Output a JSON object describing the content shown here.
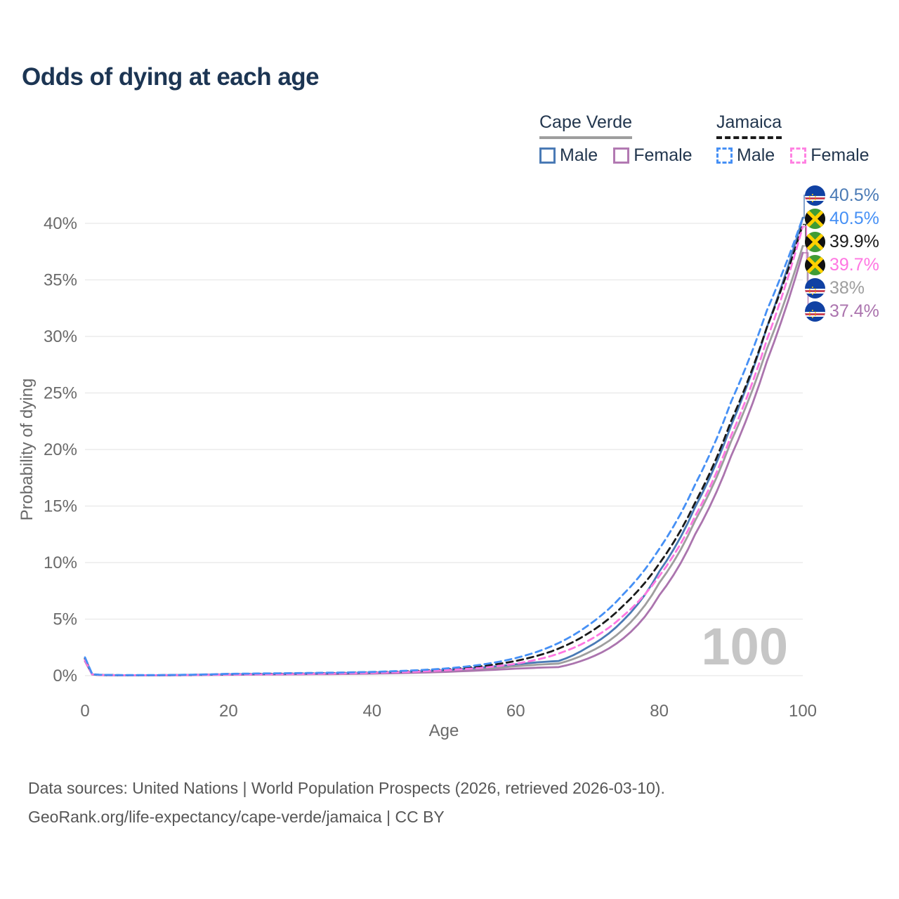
{
  "title": "Odds of dying at each age",
  "legend": {
    "groups": [
      {
        "name": "cape-verde",
        "label": "Cape Verde",
        "line_style": "solid",
        "underline_color": "#9e9e9e",
        "items": [
          {
            "label": "Male",
            "color": "#4a7ab5"
          },
          {
            "label": "Female",
            "color": "#b279b2"
          }
        ]
      },
      {
        "name": "jamaica",
        "label": "Jamaica",
        "line_style": "dashed",
        "underline_color": "#1a1a1a",
        "items": [
          {
            "label": "Male",
            "color": "#4690f5"
          },
          {
            "label": "Female",
            "color": "#ff82e2"
          }
        ]
      }
    ]
  },
  "end_labels": [
    {
      "flag": "cape-verde-flag-icon",
      "series": "Cape Verde Male",
      "value": "40.5%",
      "color": "#4a7ab5",
      "end_pct": 40.5
    },
    {
      "flag": "jamaica-flag-icon",
      "series": "Jamaica Male",
      "value": "40.5%",
      "color": "#4690f5",
      "end_pct": 40.5
    },
    {
      "flag": "jamaica-flag-icon",
      "series": "Jamaica Overall",
      "value": "39.9%",
      "color": "#1a1a1a",
      "end_pct": 39.9
    },
    {
      "flag": "jamaica-flag-icon",
      "series": "Jamaica Female",
      "value": "39.7%",
      "color": "#ff77e2",
      "end_pct": 39.7
    },
    {
      "flag": "cape-verde-flag-icon",
      "series": "Cape Verde Overall",
      "value": "38%",
      "color": "#9e9e9e",
      "end_pct": 38.0
    },
    {
      "flag": "cape-verde-flag-icon",
      "series": "Cape Verde Female",
      "value": "37.4%",
      "color": "#ab74ae",
      "end_pct": 37.4
    }
  ],
  "watermark": "100",
  "footer": {
    "line1": "Data sources: United Nations | World Population Prospects (2026, retrieved 2026-03-10).",
    "line2": "GeoRank.org/life-expectancy/cape-verde/jamaica | CC BY"
  },
  "chart_data": {
    "type": "line",
    "title": "Odds of dying at each age",
    "xlabel": "Age",
    "ylabel": "Probability of dying",
    "xlim": [
      0,
      100
    ],
    "ylim": [
      0,
      42
    ],
    "x_ticks": [
      0,
      20,
      40,
      60,
      80,
      100
    ],
    "y_ticks": [
      0,
      5,
      10,
      15,
      20,
      25,
      30,
      35,
      40
    ],
    "y_tick_suffix": "%",
    "grid": "horizontal",
    "legend_position": "top-right",
    "series": [
      {
        "name": "Cape Verde Overall",
        "country": "Cape Verde",
        "sex": "overall",
        "style": "solid",
        "color": "#9e9e9e",
        "points": [
          [
            0,
            1.42
          ],
          [
            1,
            0.11
          ],
          [
            2,
            0.06
          ],
          [
            5,
            0.03
          ],
          [
            10,
            0.03
          ],
          [
            15,
            0.06
          ],
          [
            20,
            0.1
          ],
          [
            25,
            0.13
          ],
          [
            30,
            0.15
          ],
          [
            35,
            0.18
          ],
          [
            40,
            0.23
          ],
          [
            45,
            0.3
          ],
          [
            50,
            0.42
          ],
          [
            55,
            0.59
          ],
          [
            60,
            0.83
          ],
          [
            63,
            0.97
          ],
          [
            66,
            1.07
          ],
          [
            70,
            2.0
          ],
          [
            75,
            4.1
          ],
          [
            80,
            8.2
          ],
          [
            85,
            13.7
          ],
          [
            90,
            20.7
          ],
          [
            95,
            28.9
          ],
          [
            100,
            38.0
          ]
        ]
      },
      {
        "name": "Cape Verde Female",
        "country": "Cape Verde",
        "sex": "female",
        "style": "solid",
        "color": "#ab74ae",
        "points": [
          [
            0,
            1.28
          ],
          [
            1,
            0.1
          ],
          [
            2,
            0.05
          ],
          [
            5,
            0.03
          ],
          [
            10,
            0.03
          ],
          [
            15,
            0.05
          ],
          [
            20,
            0.08
          ],
          [
            25,
            0.1
          ],
          [
            30,
            0.12
          ],
          [
            35,
            0.14
          ],
          [
            40,
            0.18
          ],
          [
            45,
            0.24
          ],
          [
            50,
            0.33
          ],
          [
            55,
            0.46
          ],
          [
            60,
            0.62
          ],
          [
            63,
            0.7
          ],
          [
            66,
            0.76
          ],
          [
            70,
            1.5
          ],
          [
            75,
            3.3
          ],
          [
            80,
            7.1
          ],
          [
            85,
            12.5
          ],
          [
            90,
            19.4
          ],
          [
            95,
            27.8
          ],
          [
            100,
            37.4
          ]
        ]
      },
      {
        "name": "Cape Verde Male",
        "country": "Cape Verde",
        "sex": "male",
        "style": "solid",
        "color": "#4a7ab5",
        "points": [
          [
            0,
            1.55
          ],
          [
            1,
            0.12
          ],
          [
            2,
            0.06
          ],
          [
            5,
            0.04
          ],
          [
            10,
            0.04
          ],
          [
            15,
            0.07
          ],
          [
            20,
            0.12
          ],
          [
            25,
            0.15
          ],
          [
            30,
            0.18
          ],
          [
            35,
            0.22
          ],
          [
            40,
            0.27
          ],
          [
            45,
            0.35
          ],
          [
            50,
            0.49
          ],
          [
            55,
            0.71
          ],
          [
            60,
            1.0
          ],
          [
            63,
            1.18
          ],
          [
            66,
            1.3
          ],
          [
            70,
            2.5
          ],
          [
            75,
            4.9
          ],
          [
            80,
            9.2
          ],
          [
            85,
            14.9
          ],
          [
            90,
            22.1
          ],
          [
            95,
            30.8
          ],
          [
            100,
            40.5
          ]
        ]
      },
      {
        "name": "Jamaica Overall",
        "country": "Jamaica",
        "sex": "overall",
        "style": "dashed",
        "color": "#1a1a1a",
        "points": [
          [
            0,
            1.5
          ],
          [
            1,
            0.13
          ],
          [
            2,
            0.07
          ],
          [
            5,
            0.04
          ],
          [
            10,
            0.04
          ],
          [
            15,
            0.07
          ],
          [
            20,
            0.13
          ],
          [
            25,
            0.16
          ],
          [
            30,
            0.19
          ],
          [
            35,
            0.23
          ],
          [
            40,
            0.29
          ],
          [
            45,
            0.39
          ],
          [
            50,
            0.54
          ],
          [
            55,
            0.81
          ],
          [
            60,
            1.3
          ],
          [
            65,
            2.15
          ],
          [
            70,
            3.7
          ],
          [
            75,
            6.2
          ],
          [
            80,
            9.9
          ],
          [
            85,
            15.3
          ],
          [
            90,
            22.5
          ],
          [
            95,
            30.8
          ],
          [
            100,
            39.9
          ]
        ]
      },
      {
        "name": "Jamaica Female",
        "country": "Jamaica",
        "sex": "female",
        "style": "dashed",
        "color": "#ff77e2",
        "points": [
          [
            0,
            1.38
          ],
          [
            1,
            0.12
          ],
          [
            2,
            0.06
          ],
          [
            5,
            0.04
          ],
          [
            10,
            0.04
          ],
          [
            15,
            0.06
          ],
          [
            20,
            0.1
          ],
          [
            25,
            0.12
          ],
          [
            30,
            0.15
          ],
          [
            35,
            0.19
          ],
          [
            40,
            0.25
          ],
          [
            45,
            0.33
          ],
          [
            50,
            0.47
          ],
          [
            55,
            0.68
          ],
          [
            60,
            1.05
          ],
          [
            65,
            1.75
          ],
          [
            70,
            3.05
          ],
          [
            75,
            5.3
          ],
          [
            80,
            8.8
          ],
          [
            85,
            14.1
          ],
          [
            90,
            21.2
          ],
          [
            95,
            29.7
          ],
          [
            100,
            39.7
          ]
        ]
      },
      {
        "name": "Jamaica Male",
        "country": "Jamaica",
        "sex": "male",
        "style": "dashed",
        "color": "#4690f5",
        "points": [
          [
            0,
            1.62
          ],
          [
            1,
            0.14
          ],
          [
            2,
            0.08
          ],
          [
            5,
            0.05
          ],
          [
            10,
            0.05
          ],
          [
            15,
            0.09
          ],
          [
            20,
            0.16
          ],
          [
            25,
            0.2
          ],
          [
            30,
            0.23
          ],
          [
            35,
            0.27
          ],
          [
            40,
            0.33
          ],
          [
            45,
            0.44
          ],
          [
            50,
            0.62
          ],
          [
            55,
            0.95
          ],
          [
            60,
            1.55
          ],
          [
            65,
            2.6
          ],
          [
            70,
            4.4
          ],
          [
            75,
            7.2
          ],
          [
            80,
            11.2
          ],
          [
            85,
            16.9
          ],
          [
            90,
            24.2
          ],
          [
            95,
            32.3
          ],
          [
            100,
            40.5
          ]
        ]
      }
    ]
  }
}
